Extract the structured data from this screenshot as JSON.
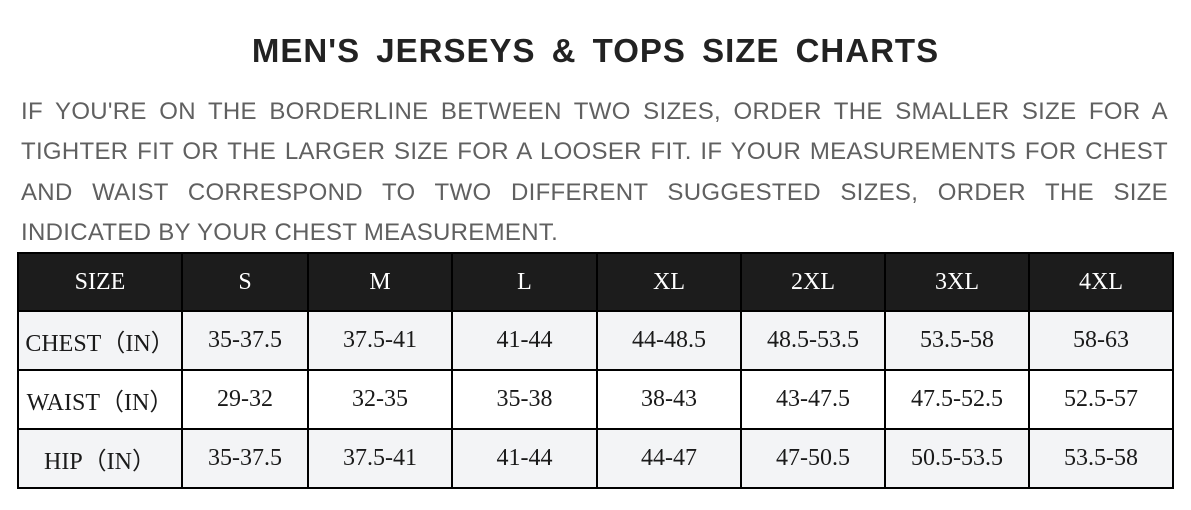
{
  "title": "MEN'S JERSEYS & TOPS SIZE CHARTS",
  "intro": "IF YOU'RE ON THE BORDERLINE BETWEEN TWO SIZES, ORDER THE SMALLER SIZE FOR A TIGHTER FIT OR THE LARGER SIZE FOR A LOOSER FIT. IF YOUR MEASUREMENTS FOR CHEST AND WAIST CORRESPOND TO TWO DIFFERENT SUGGESTED SIZES, ORDER THE SIZE INDICATED BY YOUR CHEST MEASUREMENT.",
  "table": {
    "header": [
      "SIZE",
      "S",
      "M",
      "L",
      "XL",
      "2XL",
      "3XL",
      "4XL"
    ],
    "rows": [
      [
        "CHEST（IN）",
        "35-37.5",
        "37.5-41",
        "41-44",
        "44-48.5",
        "48.5-53.5",
        "53.5-58",
        "58-63"
      ],
      [
        "WAIST（IN）",
        "29-32",
        "32-35",
        "35-38",
        "38-43",
        "43-47.5",
        "47.5-52.5",
        "52.5-57"
      ],
      [
        "HIP（IN）",
        "35-37.5",
        "37.5-41",
        "41-44",
        "44-47",
        "47-50.5",
        "50.5-53.5",
        "53.5-58"
      ]
    ]
  },
  "colors": {
    "header_bg": "#1c1c1c",
    "alt_row_bg": "#f3f4f6",
    "intro_text": "#606060"
  }
}
